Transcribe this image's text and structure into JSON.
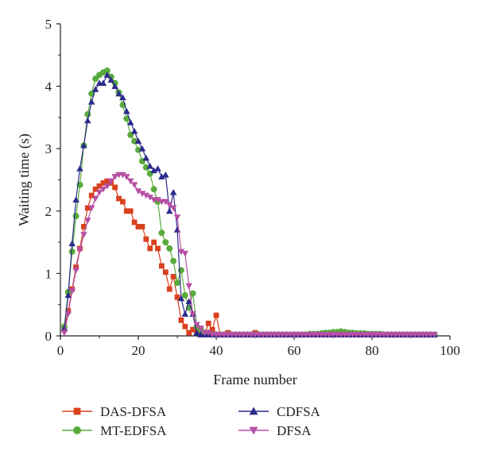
{
  "chart_data": {
    "type": "line",
    "title": "",
    "xlabel": "Frame number",
    "ylabel": "Waiting time (s)",
    "xlim": [
      0,
      100
    ],
    "ylim": [
      0,
      5
    ],
    "xticks": [
      0,
      20,
      40,
      60,
      80,
      100
    ],
    "yticks": [
      0,
      1,
      2,
      3,
      4,
      5
    ],
    "grid": false,
    "legend_position": "bottom",
    "series": [
      {
        "name": "DAS-DFSA",
        "color": "#d9411e",
        "marker": "square",
        "x": [
          1,
          2,
          3,
          4,
          5,
          6,
          7,
          8,
          9,
          10,
          11,
          12,
          13,
          14,
          15,
          16,
          17,
          18,
          19,
          20,
          21,
          22,
          23,
          24,
          25,
          26,
          27,
          28,
          29,
          30,
          31,
          32,
          33,
          34,
          35,
          36,
          37,
          38,
          39,
          40,
          41,
          42,
          43,
          44,
          45,
          46,
          47,
          48,
          49,
          50,
          51,
          52,
          53,
          54,
          55,
          56,
          57,
          58,
          59,
          60,
          61,
          62,
          63,
          64,
          65,
          66,
          67,
          68,
          69,
          70,
          71,
          72,
          73,
          74,
          75,
          76,
          77,
          78,
          79,
          80,
          81,
          82,
          83,
          84,
          85,
          86,
          87,
          88,
          89,
          90,
          91,
          92,
          93,
          94,
          95,
          96
        ],
        "values": [
          0.1,
          0.4,
          0.75,
          1.1,
          1.4,
          1.75,
          2.05,
          2.25,
          2.35,
          2.4,
          2.45,
          2.48,
          2.45,
          2.38,
          2.2,
          2.15,
          2.0,
          2.0,
          1.82,
          1.75,
          1.75,
          1.55,
          1.4,
          1.5,
          1.4,
          1.12,
          1.02,
          0.75,
          0.95,
          0.62,
          0.25,
          0.15,
          0.05,
          0.1,
          0.08,
          0.1,
          0.02,
          0.2,
          0.1,
          0.33,
          0.02,
          0.02,
          0.05,
          0.02,
          0.02,
          0.02,
          0.02,
          0.02,
          0.02,
          0.05,
          0.02,
          0.02,
          0.02,
          0.02,
          0.02,
          0.02,
          0.02,
          0.02,
          0.02,
          0.02,
          0.02,
          0.02,
          0.02,
          0.02,
          0.02,
          0.02,
          0.02,
          0.02,
          0.02,
          0.02,
          0.02,
          0.02,
          0.02,
          0.02,
          0.02,
          0.02,
          0.02,
          0.02,
          0.02,
          0.02,
          0.02,
          0.02,
          0.02,
          0.02,
          0.02,
          0.02,
          0.02,
          0.02,
          0.02,
          0.02,
          0.02,
          0.02,
          0.02,
          0.02,
          0.02,
          0.02
        ]
      },
      {
        "name": "MT-EDFSA",
        "color": "#5aab3d",
        "marker": "circle",
        "x": [
          1,
          2,
          3,
          4,
          5,
          6,
          7,
          8,
          9,
          10,
          11,
          12,
          13,
          14,
          15,
          16,
          17,
          18,
          19,
          20,
          21,
          22,
          23,
          24,
          25,
          26,
          27,
          28,
          29,
          30,
          31,
          32,
          33,
          34,
          35,
          36,
          37,
          38,
          39,
          40,
          41,
          42,
          43,
          44,
          45,
          46,
          47,
          48,
          49,
          50,
          51,
          52,
          53,
          54,
          55,
          56,
          57,
          58,
          59,
          60,
          61,
          62,
          63,
          64,
          65,
          66,
          67,
          68,
          69,
          70,
          71,
          72,
          73,
          74,
          75,
          76,
          77,
          78,
          79,
          80,
          81,
          82,
          83,
          84,
          85,
          86,
          87,
          88,
          89,
          90,
          91,
          92,
          93,
          94,
          95,
          96
        ],
        "values": [
          0.15,
          0.7,
          1.35,
          1.92,
          2.42,
          3.05,
          3.55,
          3.88,
          4.12,
          4.18,
          4.22,
          4.25,
          4.15,
          4.05,
          3.9,
          3.7,
          3.48,
          3.22,
          3.12,
          2.98,
          2.8,
          2.7,
          2.6,
          2.35,
          2.15,
          1.65,
          1.5,
          1.4,
          1.2,
          0.85,
          1.05,
          0.65,
          0.45,
          0.68,
          0.15,
          0.1,
          0.05,
          0.05,
          0.02,
          0.02,
          0.02,
          0.02,
          0.02,
          0.02,
          0.02,
          0.02,
          0.02,
          0.02,
          0.02,
          0.02,
          0.02,
          0.02,
          0.02,
          0.02,
          0.02,
          0.02,
          0.02,
          0.02,
          0.02,
          0.02,
          0.02,
          0.02,
          0.02,
          0.03,
          0.03,
          0.03,
          0.04,
          0.05,
          0.05,
          0.06,
          0.06,
          0.07,
          0.06,
          0.05,
          0.05,
          0.04,
          0.04,
          0.04,
          0.03,
          0.03,
          0.03,
          0.03,
          0.02,
          0.02,
          0.02,
          0.02,
          0.02,
          0.02,
          0.02,
          0.02,
          0.02,
          0.02,
          0.02,
          0.02,
          0.02,
          0.02
        ]
      },
      {
        "name": "CDFSA",
        "color": "#2b2a8c",
        "marker": "triangle-up",
        "x": [
          1,
          2,
          3,
          4,
          5,
          6,
          7,
          8,
          9,
          10,
          11,
          12,
          13,
          14,
          15,
          16,
          17,
          18,
          19,
          20,
          21,
          22,
          23,
          24,
          25,
          26,
          27,
          28,
          29,
          30,
          31,
          32,
          33,
          34,
          35,
          36,
          37,
          38,
          39,
          40,
          41,
          42,
          43,
          44,
          45,
          46,
          47,
          48,
          49,
          50,
          51,
          52,
          53,
          54,
          55,
          56,
          57,
          58,
          59,
          60,
          61,
          62,
          63,
          64,
          65,
          66,
          67,
          68,
          69,
          70,
          71,
          72,
          73,
          74,
          75,
          76,
          77,
          78,
          79,
          80,
          81,
          82,
          83,
          84,
          85,
          86,
          87,
          88,
          89,
          90,
          91,
          92,
          93,
          94,
          95,
          96
        ],
        "values": [
          0.12,
          0.65,
          1.48,
          2.18,
          2.68,
          3.05,
          3.45,
          3.75,
          3.95,
          4.05,
          4.05,
          4.18,
          4.1,
          4.0,
          3.88,
          3.82,
          3.6,
          3.42,
          3.28,
          3.12,
          3.0,
          2.85,
          2.72,
          2.65,
          2.68,
          2.55,
          2.58,
          2.0,
          2.3,
          1.7,
          0.6,
          0.35,
          0.55,
          0.35,
          0.05,
          0.02,
          0.02,
          0.02,
          0.02,
          0.02,
          0.02,
          0.02,
          0.02,
          0.02,
          0.02,
          0.02,
          0.02,
          0.02,
          0.02,
          0.02,
          0.02,
          0.02,
          0.02,
          0.02,
          0.02,
          0.02,
          0.02,
          0.02,
          0.02,
          0.02,
          0.02,
          0.02,
          0.02,
          0.02,
          0.02,
          0.02,
          0.02,
          0.02,
          0.02,
          0.02,
          0.02,
          0.02,
          0.02,
          0.02,
          0.02,
          0.02,
          0.02,
          0.02,
          0.02,
          0.02,
          0.02,
          0.02,
          0.02,
          0.02,
          0.02,
          0.02,
          0.02,
          0.02,
          0.02,
          0.02,
          0.02,
          0.02,
          0.02,
          0.02,
          0.02,
          0.02
        ]
      },
      {
        "name": "DFSA",
        "color": "#b84fa5",
        "marker": "triangle-down",
        "x": [
          1,
          2,
          3,
          4,
          5,
          6,
          7,
          8,
          9,
          10,
          11,
          12,
          13,
          14,
          15,
          16,
          17,
          18,
          19,
          20,
          21,
          22,
          23,
          24,
          25,
          26,
          27,
          28,
          29,
          30,
          31,
          32,
          33,
          34,
          35,
          36,
          37,
          38,
          39,
          40,
          41,
          42,
          43,
          44,
          45,
          46,
          47,
          48,
          49,
          50,
          51,
          52,
          53,
          54,
          55,
          56,
          57,
          58,
          59,
          60,
          61,
          62,
          63,
          64,
          65,
          66,
          67,
          68,
          69,
          70,
          71,
          72,
          73,
          74,
          75,
          76,
          77,
          78,
          79,
          80,
          81,
          82,
          83,
          84,
          85,
          86,
          87,
          88,
          89,
          90,
          91,
          92,
          93,
          94,
          95,
          96
        ],
        "values": [
          0.05,
          0.35,
          0.72,
          1.05,
          1.38,
          1.62,
          1.85,
          2.05,
          2.2,
          2.3,
          2.35,
          2.4,
          2.48,
          2.55,
          2.58,
          2.58,
          2.55,
          2.48,
          2.42,
          2.32,
          2.28,
          2.25,
          2.22,
          2.18,
          2.18,
          2.15,
          2.15,
          2.1,
          2.05,
          1.9,
          1.35,
          1.32,
          0.8,
          0.35,
          0.18,
          0.12,
          0.05,
          0.05,
          0.02,
          0.02,
          0.02,
          0.02,
          0.02,
          0.02,
          0.02,
          0.02,
          0.02,
          0.02,
          0.02,
          0.02,
          0.02,
          0.02,
          0.02,
          0.02,
          0.02,
          0.02,
          0.02,
          0.02,
          0.02,
          0.02,
          0.02,
          0.02,
          0.02,
          0.02,
          0.02,
          0.02,
          0.02,
          0.02,
          0.02,
          0.02,
          0.02,
          0.02,
          0.02,
          0.02,
          0.02,
          0.02,
          0.02,
          0.02,
          0.02,
          0.02,
          0.02,
          0.02,
          0.02,
          0.02,
          0.02,
          0.02,
          0.02,
          0.02,
          0.02,
          0.02,
          0.02,
          0.02,
          0.02,
          0.02,
          0.02,
          0.02
        ]
      }
    ]
  }
}
